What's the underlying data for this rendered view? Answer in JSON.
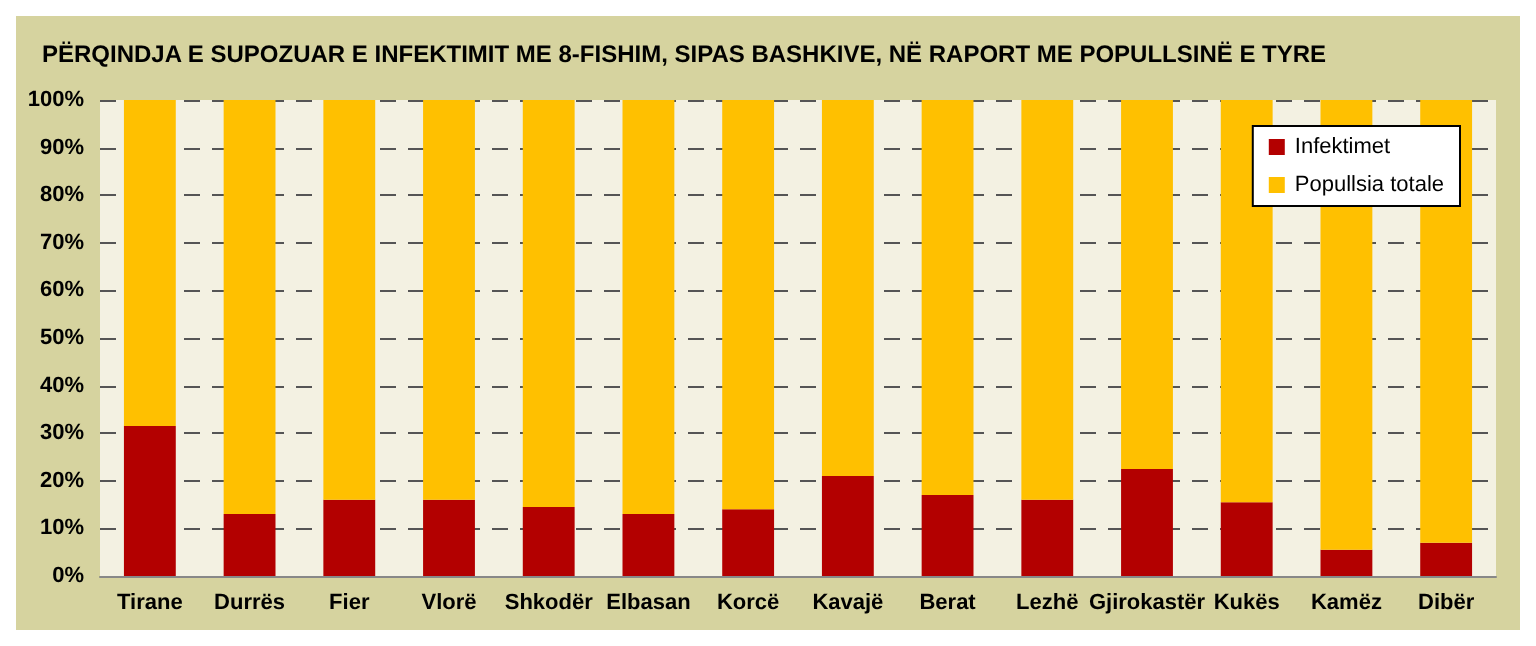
{
  "chart_data": {
    "type": "bar",
    "title": "PËRQINDJA E SUPOZUAR E INFEKTIMIT ME 8-FISHIM, SIPAS BASHKIVE, NË RAPORT ME POPULLSINË E TYRE",
    "categories": [
      "Tirane",
      "Durrës",
      "Fier",
      "Vlorë",
      "Shkodër",
      "Elbasan",
      "Korcë",
      "Kavajë",
      "Berat",
      "Lezhë",
      "Gjirokastër",
      "Kukës",
      "Kamëz",
      "Dibër"
    ],
    "series": [
      {
        "name": "Infektimet",
        "color": "#b30000",
        "values": [
          31.5,
          13,
          16,
          16,
          14.5,
          13,
          14,
          21,
          17,
          16,
          22.5,
          15.5,
          5.5,
          7
        ]
      },
      {
        "name": "Popullsia totale",
        "color": "#ffc000",
        "values": [
          68.5,
          87,
          84,
          84,
          85.5,
          87,
          86,
          79,
          83,
          84,
          77.5,
          84.5,
          94.5,
          93
        ]
      }
    ],
    "stacked": true,
    "ylim": [
      0,
      100
    ],
    "yticks": [
      {
        "value": 0,
        "label": "0%"
      },
      {
        "value": 10,
        "label": "10%"
      },
      {
        "value": 20,
        "label": "20%"
      },
      {
        "value": 30,
        "label": "30%"
      },
      {
        "value": 40,
        "label": "40%"
      },
      {
        "value": 50,
        "label": "50%"
      },
      {
        "value": 60,
        "label": "60%"
      },
      {
        "value": 70,
        "label": "70%"
      },
      {
        "value": 80,
        "label": "80%"
      },
      {
        "value": 90,
        "label": "90%"
      },
      {
        "value": 100,
        "label": "100%"
      }
    ],
    "grid": "y",
    "legend": "top right"
  }
}
